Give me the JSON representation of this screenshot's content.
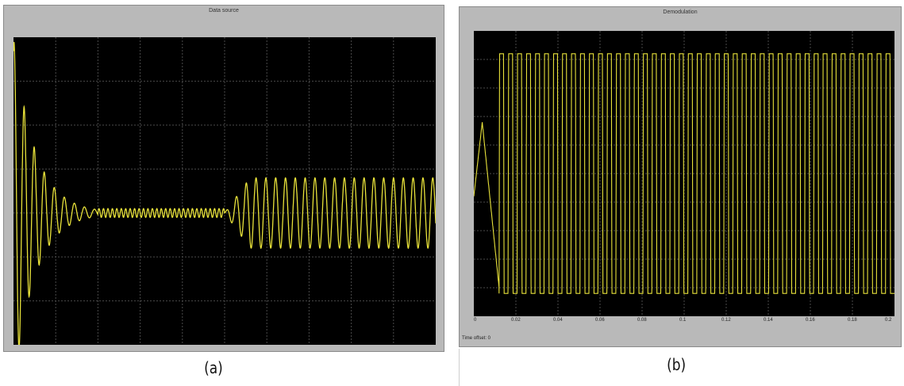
{
  "panels": [
    {
      "title": "Data source",
      "caption": "(a)"
    },
    {
      "title": "Demodulation",
      "caption": "(b)",
      "status_text": "Time offset: 0"
    }
  ],
  "chart_data": [
    {
      "type": "line",
      "title": "Data source",
      "xlabel": "",
      "ylabel": "",
      "x_range": [
        0,
        10
      ],
      "ylim": [
        -3,
        4
      ],
      "grid": true,
      "series_color": "#e8e23a",
      "background": "#000000",
      "segments": [
        {
          "t_start": 0.0,
          "t_end": 2.0,
          "form": "decaying oscillation",
          "initial_peak": 4.0,
          "min": -2.5,
          "settles_to": 0.0
        },
        {
          "t_start": 2.0,
          "t_end": 5.0,
          "form": "small ripple",
          "amplitude": 0.1,
          "center": 0.0
        },
        {
          "t_start": 5.0,
          "t_end": 10.0,
          "form": "steady oscillation",
          "max": 0.8,
          "min": -0.8,
          "center": 0.0
        }
      ]
    },
    {
      "type": "line",
      "title": "Demodulation",
      "xlabel": "",
      "ylabel": "",
      "x_ticks": [
        "0",
        "0.02",
        "0.04",
        "0.06",
        "0.08",
        "0.1",
        "0.12",
        "0.14",
        "0.16",
        "0.18",
        "0.2"
      ],
      "xlim": [
        0,
        0.2
      ],
      "ylim": [
        -250,
        250
      ],
      "grid": true,
      "series_color": "#e8e23a",
      "background": "#000000",
      "description_values": {
        "high_level": 210,
        "low_level": -210,
        "cycles": 44
      },
      "segments": [
        {
          "t_start": 0.0,
          "t_end": 0.012,
          "form": "startup transient",
          "peak": 90,
          "min": -200
        }
      ]
    }
  ]
}
